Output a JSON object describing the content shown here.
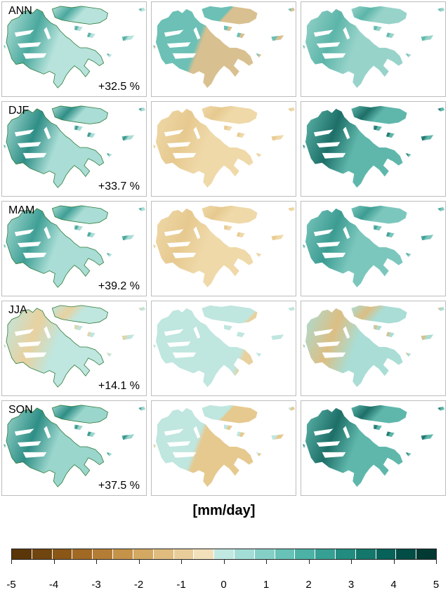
{
  "rows": [
    {
      "season": "ANN",
      "percent": "+32.5 %",
      "fills": [
        "#b7e3dc",
        "#6cc0b5",
        "#98d3ca"
      ],
      "shade": [
        "#4aa89d",
        "#d9c090",
        "#5cb5a9"
      ],
      "split": [
        0,
        0.55,
        0
      ]
    },
    {
      "season": "DJF",
      "percent": "+33.7 %",
      "fills": [
        "#a9ddd5",
        "#efd9a9",
        "#5fb7ab"
      ],
      "shade": [
        "#2e8e86",
        "#e6c98f",
        "#1d6f68"
      ],
      "split": [
        0,
        0.0,
        0
      ]
    },
    {
      "season": "MAM",
      "percent": "+39.2 %",
      "fills": [
        "#a9ddd5",
        "#efd9a9",
        "#7cc7bd"
      ],
      "shade": [
        "#3f9f95",
        "#e6c98f",
        "#3c9c92"
      ],
      "split": [
        0,
        0.0,
        0
      ]
    },
    {
      "season": "JJA",
      "percent": "+14.1 %",
      "fills": [
        "#bfe6df",
        "#bfe6df",
        "#a9ddd5"
      ],
      "shade": [
        "#e8d19f",
        "#e8d19f",
        "#dcbe83"
      ],
      "split": [
        0,
        1.0,
        0
      ]
    },
    {
      "season": "SON",
      "percent": "+37.5 %",
      "fills": [
        "#9bd6cd",
        "#bfe6df",
        "#5fb7ab"
      ],
      "shade": [
        "#2e8e86",
        "#e6c98f",
        "#1d6f68"
      ],
      "split": [
        0,
        0.55,
        0
      ]
    }
  ],
  "unit_label": "[mm/day]",
  "colorbar": {
    "colors": [
      "#5a3608",
      "#71450f",
      "#8a5717",
      "#a16924",
      "#b47d35",
      "#c49249",
      "#d3a862",
      "#dfbc7d",
      "#e8cd9b",
      "#f2e0bb",
      "#c2e8e2",
      "#a4ddd5",
      "#85d0c6",
      "#68c2b7",
      "#4db2a6",
      "#37a094",
      "#238c80",
      "#13776c",
      "#076259",
      "#024d45",
      "#003a33"
    ],
    "ticks": [
      -5,
      -4,
      -3,
      -2,
      -1,
      0,
      1,
      2,
      3,
      4,
      5
    ],
    "tick_labels": [
      "-5",
      "-4",
      "-3",
      "-2",
      "-1",
      "0",
      "1",
      "2",
      "3",
      "4",
      "5"
    ]
  }
}
